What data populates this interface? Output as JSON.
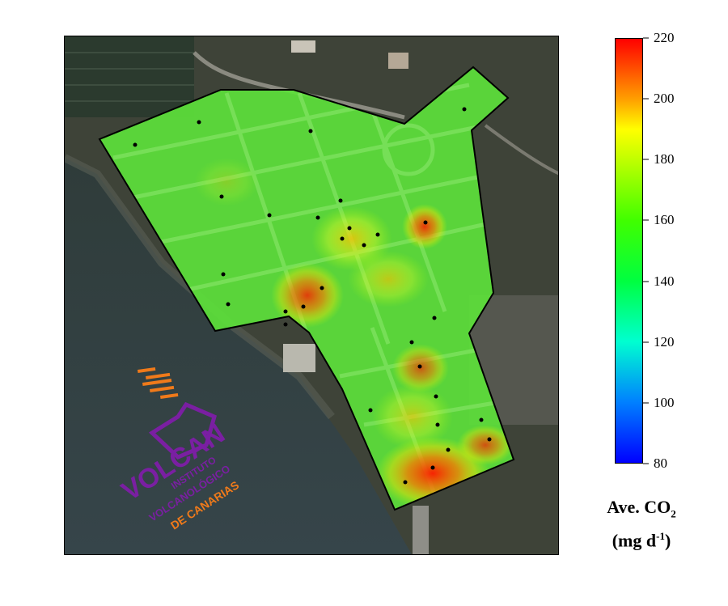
{
  "colorbar": {
    "title_main": "Ave. CO",
    "title_sub": "2",
    "unit_prefix": "(mg d",
    "unit_sup": "-1",
    "unit_suffix": ")",
    "min": 80,
    "max": 220,
    "ticks": [
      "220",
      "200",
      "180",
      "160",
      "140",
      "120",
      "100",
      "80"
    ],
    "stops": [
      {
        "value": 220,
        "color": "#ff0000"
      },
      {
        "value": 200,
        "color": "#ffa000"
      },
      {
        "value": 190,
        "color": "#ffff00"
      },
      {
        "value": 175,
        "color": "#a0ff00"
      },
      {
        "value": 160,
        "color": "#40ff00"
      },
      {
        "value": 140,
        "color": "#00ff40"
      },
      {
        "value": 120,
        "color": "#00ffd0"
      },
      {
        "value": 100,
        "color": "#0080ff"
      },
      {
        "value": 80,
        "color": "#0000ff"
      }
    ]
  },
  "logo": {
    "word": "VOLCAN",
    "line1": "INSTITUTO",
    "line2": "VOLCANOLÓGICO",
    "line3": "DE CANARIAS",
    "purple": "#7a1fa2",
    "orange": "#f07a1a"
  },
  "map": {
    "base_color": "#5de03a",
    "outline_color": "#000000",
    "hotspot_count": 9
  }
}
